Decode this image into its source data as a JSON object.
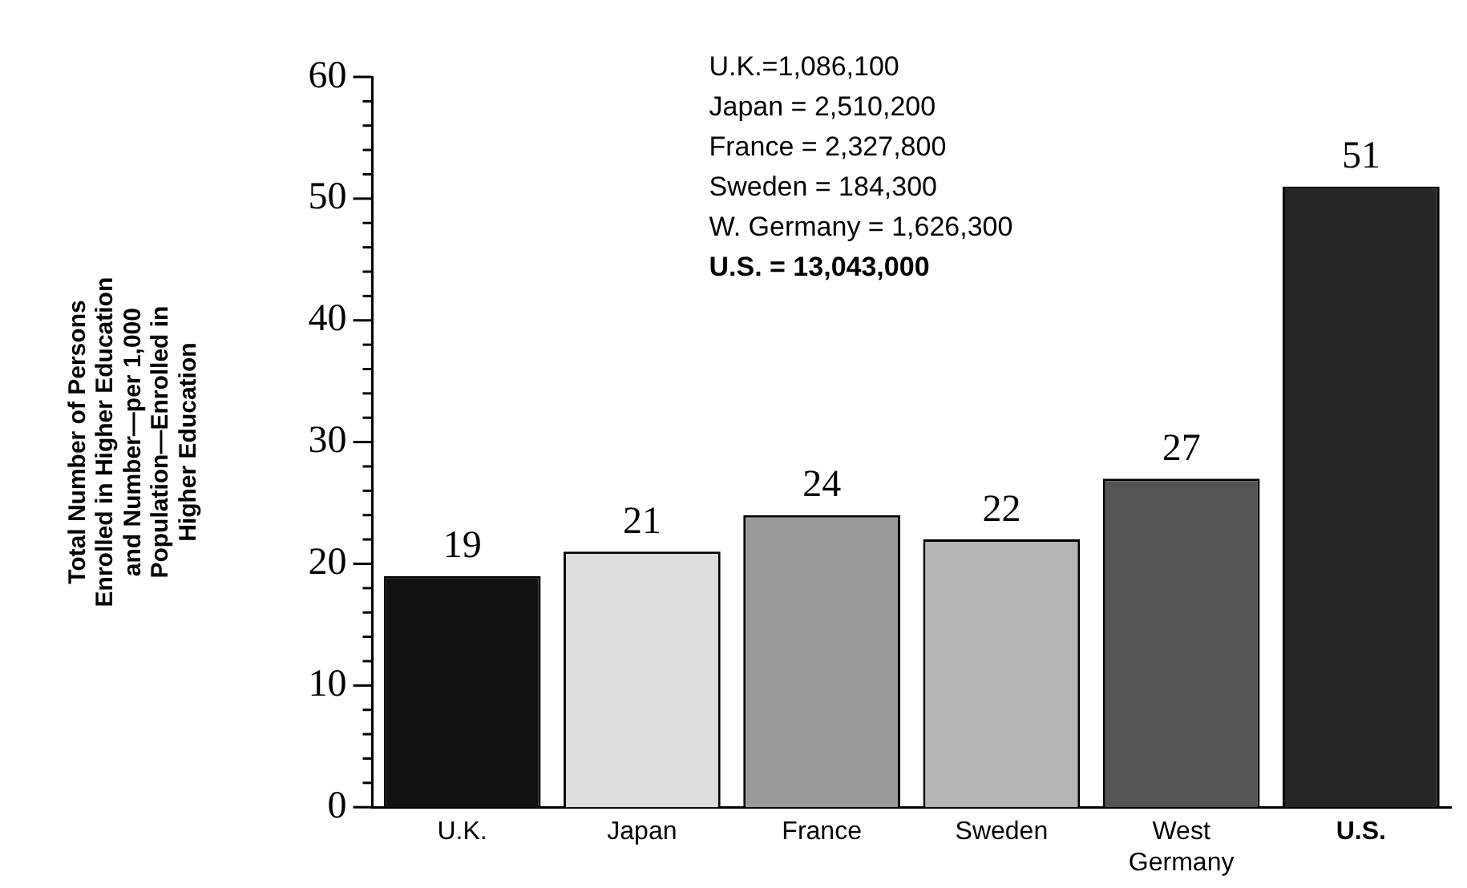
{
  "chart_data": {
    "type": "bar",
    "ylabel": "Total Number of Persons\nEnrolled in Higher Education\nand Number—per 1,000\nPopulation—Enrolled in\nHigher Education",
    "categories": [
      "U.K.",
      "Japan",
      "France",
      "Sweden",
      "West Germany",
      "U.S."
    ],
    "values": [
      19,
      21,
      24,
      22,
      27,
      51
    ],
    "colors": [
      "#111111",
      "#dddddd",
      "#9a9a9a",
      "#b4b4b4",
      "#555555",
      "#262626"
    ],
    "ylim": [
      0,
      60
    ],
    "yticks": [
      0,
      {
        "value": 2,
        "label": null
      },
      {
        "value": 4,
        "label": null
      },
      {
        "value": 6,
        "label": null
      },
      {
        "value": 8,
        "label": null
      },
      10,
      {
        "value": 12,
        "label": null
      },
      {
        "value": 14,
        "label": null
      },
      {
        "value": 16,
        "label": null
      },
      {
        "value": 18,
        "label": null
      },
      20,
      {
        "value": 22,
        "label": null
      },
      {
        "value": 24,
        "label": null
      },
      {
        "value": 26,
        "label": null
      },
      {
        "value": 28,
        "label": null
      },
      30,
      {
        "value": 32,
        "label": null
      },
      {
        "value": 34,
        "label": null
      },
      {
        "value": 36,
        "label": null
      },
      {
        "value": 38,
        "label": null
      },
      40,
      {
        "value": 42,
        "label": null
      },
      {
        "value": 44,
        "label": null
      },
      {
        "value": 46,
        "label": null
      },
      {
        "value": 48,
        "label": null
      },
      50,
      {
        "value": 52,
        "label": null
      },
      {
        "value": 54,
        "label": null
      },
      {
        "value": 56,
        "label": null
      },
      {
        "value": 58,
        "label": null
      },
      60
    ],
    "data_labels": true,
    "grid": false,
    "legend": false,
    "annotations": [
      "U.K.=1,086,100",
      "Japan = 2,510,200",
      "France = 2,327,800",
      "Sweden = 184,300",
      "W. Germany = 1,626,300",
      "U.S. = 13,043,000"
    ]
  }
}
